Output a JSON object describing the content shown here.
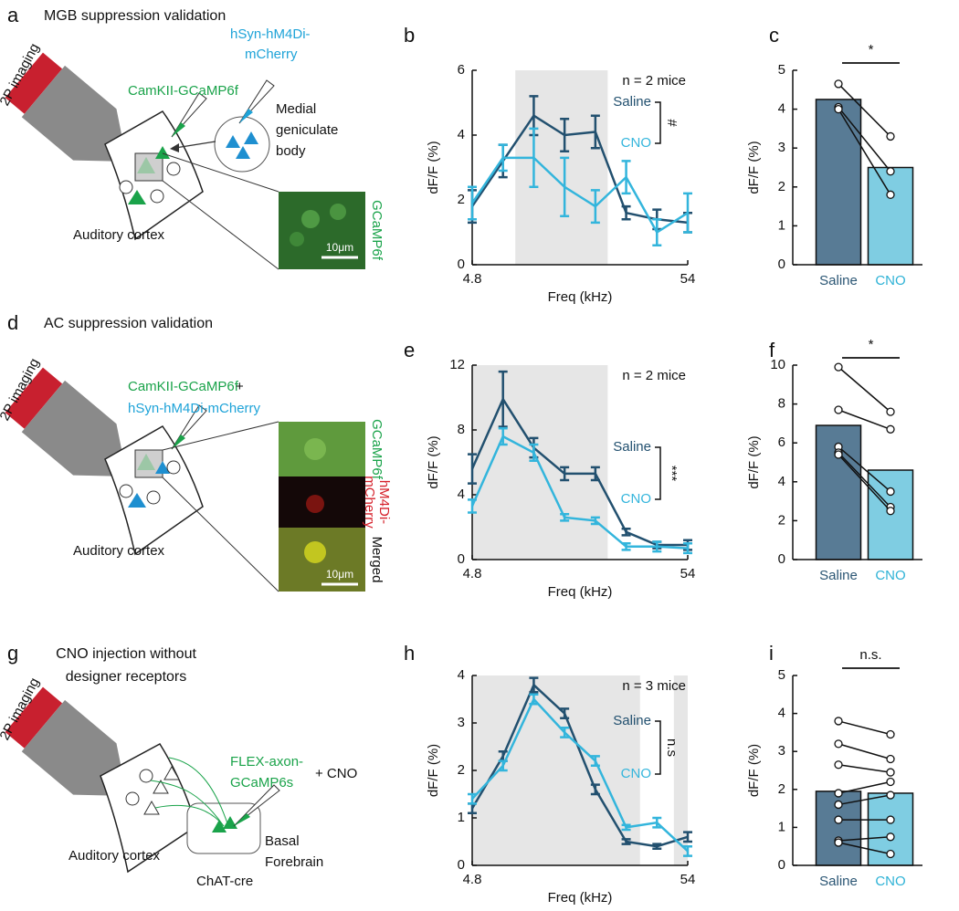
{
  "diagrams": [
    {
      "panel": "a",
      "title": "MGB suppression validation",
      "labels": {
        "imaging": "2P imaging",
        "indicator": "CamKII-GCaMP6f",
        "virus": [
          "hSyn-hM4Di-",
          "mCherry"
        ],
        "target": [
          "Medial",
          "geniculate",
          "body"
        ],
        "region": "Auditory cortex",
        "image_labels": [
          "GCaMP6f"
        ],
        "scale": "10μm"
      }
    },
    {
      "panel": "d",
      "title": "AC suppression validation",
      "labels": {
        "imaging": "2P imaging",
        "indicator": "CamKII-GCaMP6f",
        "plus": "+",
        "virus": "hSyn-hM4Di-mCherry",
        "region": "Auditory cortex",
        "image_labels": [
          "GCaMP6f",
          [
            "hM4Di-",
            "mCherry"
          ],
          "Merged"
        ],
        "scale": "10μm"
      }
    },
    {
      "panel": "g",
      "title": [
        "CNO injection without",
        "designer receptors"
      ],
      "labels": {
        "imaging": "2P imaging",
        "indicator": [
          "FLEX-axon-",
          "GCaMP6s"
        ],
        "drug": "+ CNO",
        "region": "Auditory cortex",
        "target": [
          "Basal",
          "Forebrain"
        ],
        "mouse": "ChAT-cre"
      }
    }
  ],
  "chart_data": [
    {
      "type": "line",
      "panel": "b",
      "ylabel": "dF/F (%)",
      "xlabel": "Freq (kHz)",
      "categories": [
        "4.8",
        null,
        null,
        null,
        null,
        null,
        null,
        "54"
      ],
      "ylim": [
        0,
        6
      ],
      "yticks": [
        0,
        2,
        4,
        6
      ],
      "shaded": [
        [
          1.4,
          4.4
        ]
      ],
      "annotation": "n = 2 mice",
      "significance": "#",
      "series": [
        {
          "name": "Saline",
          "color": "#22506f",
          "values": [
            1.8,
            3.2,
            4.6,
            4.0,
            4.1,
            1.6,
            1.4,
            1.3
          ],
          "errors": [
            0.5,
            0.5,
            0.6,
            0.5,
            0.5,
            0.2,
            0.3,
            0.3
          ]
        },
        {
          "name": "CNO",
          "color": "#33b5dc",
          "values": [
            1.9,
            3.3,
            3.3,
            2.4,
            1.8,
            2.7,
            1.0,
            1.6
          ],
          "errors": [
            0.5,
            0.4,
            0.9,
            0.9,
            0.5,
            0.5,
            0.4,
            0.6
          ]
        }
      ]
    },
    {
      "type": "bar",
      "panel": "c",
      "ylabel": "dF/F (%)",
      "categories": [
        "Saline",
        "CNO"
      ],
      "values": [
        4.25,
        2.5
      ],
      "colors": [
        "#587b95",
        "#7fcde2"
      ],
      "label_colors": [
        "#2b5674",
        "#2eb2d6"
      ],
      "ylim": [
        0,
        5
      ],
      "yticks": [
        0,
        1,
        2,
        3,
        4,
        5
      ],
      "pairs": [
        [
          4.65,
          3.3
        ],
        [
          4.05,
          2.4
        ],
        [
          4.0,
          1.8
        ]
      ],
      "significance": "*"
    },
    {
      "type": "line",
      "panel": "e",
      "ylabel": "dF/F (%)",
      "xlabel": "Freq (kHz)",
      "categories": [
        "4.8",
        null,
        null,
        null,
        null,
        null,
        null,
        "54"
      ],
      "ylim": [
        0,
        12
      ],
      "yticks": [
        0,
        4,
        8,
        12
      ],
      "shaded": [
        [
          0,
          4.4
        ]
      ],
      "annotation": "n = 2 mice",
      "significance": "***",
      "series": [
        {
          "name": "Saline",
          "color": "#22506f",
          "values": [
            5.6,
            9.9,
            6.9,
            5.3,
            5.3,
            1.7,
            0.9,
            0.9
          ],
          "errors": [
            0.9,
            1.7,
            0.6,
            0.4,
            0.4,
            0.2,
            0.2,
            0.3
          ]
        },
        {
          "name": "CNO",
          "color": "#33b5dc",
          "values": [
            3.3,
            7.6,
            6.6,
            2.6,
            2.4,
            0.8,
            0.8,
            0.7
          ],
          "errors": [
            0.4,
            0.5,
            0.5,
            0.2,
            0.2,
            0.2,
            0.3,
            0.3
          ]
        }
      ]
    },
    {
      "type": "bar",
      "panel": "f",
      "ylabel": "dF/F (%)",
      "categories": [
        "Saline",
        "CNO"
      ],
      "values": [
        6.9,
        4.6
      ],
      "colors": [
        "#587b95",
        "#7fcde2"
      ],
      "label_colors": [
        "#2b5674",
        "#2eb2d6"
      ],
      "ylim": [
        0,
        10
      ],
      "yticks": [
        0,
        2,
        4,
        6,
        8,
        10
      ],
      "pairs": [
        [
          9.9,
          7.6
        ],
        [
          7.7,
          6.7
        ],
        [
          5.8,
          3.5
        ],
        [
          5.5,
          2.7
        ],
        [
          5.4,
          2.5
        ]
      ],
      "significance": "*"
    },
    {
      "type": "line",
      "panel": "h",
      "ylabel": "dF/F (%)",
      "xlabel": "Freq (kHz)",
      "categories": [
        "4.8",
        null,
        null,
        null,
        null,
        null,
        null,
        "54"
      ],
      "ylim": [
        0,
        4
      ],
      "yticks": [
        0,
        1,
        2,
        3,
        4
      ],
      "shaded": [
        [
          0,
          5.45
        ],
        [
          6.55,
          7
        ]
      ],
      "annotation": "n = 3 mice",
      "significance": "n.s",
      "series": [
        {
          "name": "Saline",
          "color": "#22506f",
          "values": [
            1.2,
            2.3,
            3.8,
            3.2,
            1.6,
            0.5,
            0.4,
            0.6
          ],
          "errors": [
            0.1,
            0.1,
            0.15,
            0.1,
            0.1,
            0.05,
            0.05,
            0.1
          ]
        },
        {
          "name": "CNO",
          "color": "#33b5dc",
          "values": [
            1.4,
            2.1,
            3.5,
            2.8,
            2.2,
            0.8,
            0.9,
            0.3
          ],
          "errors": [
            0.1,
            0.1,
            0.1,
            0.1,
            0.1,
            0.05,
            0.1,
            0.1
          ]
        }
      ]
    },
    {
      "type": "bar",
      "panel": "i",
      "ylabel": "dF/F (%)",
      "categories": [
        "Saline",
        "CNO"
      ],
      "values": [
        1.95,
        1.9
      ],
      "colors": [
        "#587b95",
        "#7fcde2"
      ],
      "label_colors": [
        "#2b5674",
        "#2eb2d6"
      ],
      "ylim": [
        0,
        5
      ],
      "yticks": [
        0,
        1,
        2,
        3,
        4,
        5
      ],
      "pairs": [
        [
          3.8,
          3.45
        ],
        [
          3.2,
          2.8
        ],
        [
          2.65,
          2.45
        ],
        [
          1.9,
          2.2
        ],
        [
          1.6,
          1.85
        ],
        [
          1.2,
          1.2
        ],
        [
          0.65,
          0.75
        ],
        [
          0.6,
          0.3
        ]
      ],
      "significance": "n.s."
    }
  ]
}
